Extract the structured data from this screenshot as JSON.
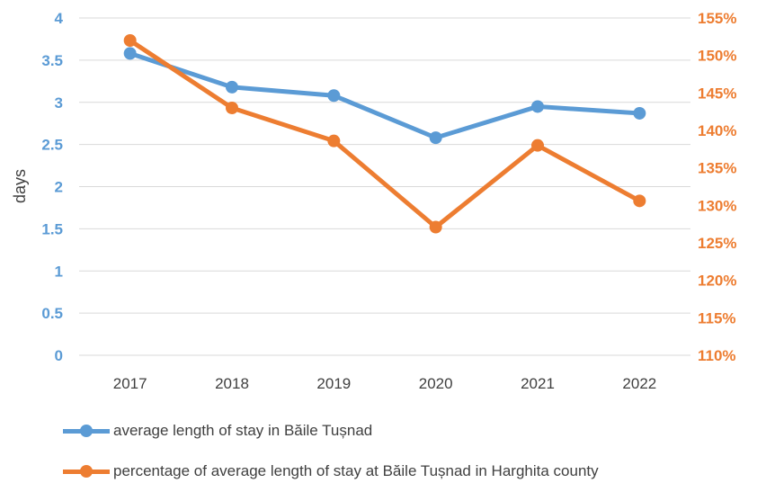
{
  "chart_data": {
    "type": "line",
    "categories": [
      "2017",
      "2018",
      "2019",
      "2020",
      "2021",
      "2022"
    ],
    "ylabel": "days",
    "ylim": [
      0,
      4
    ],
    "y_ticks": [
      "0",
      "0.5",
      "1",
      "1.5",
      "2",
      "2.5",
      "3",
      "3.5",
      "4"
    ],
    "y2lim": [
      110,
      155
    ],
    "y2_ticks": [
      "110%",
      "115%",
      "120%",
      "125%",
      "130%",
      "135%",
      "140%",
      "145%",
      "150%",
      "155%"
    ],
    "grid": true,
    "legend_position": "bottom",
    "series": [
      {
        "name": "average length of stay in Băile Tușnad",
        "axis": "left",
        "color": "#5B9BD5",
        "values": [
          3.58,
          3.18,
          3.08,
          2.58,
          2.95,
          2.87
        ]
      },
      {
        "name": "percentage of average length of stay at Băile Tușnad in Harghita county",
        "axis": "right",
        "color": "#ED7D31",
        "values": [
          152,
          143,
          138.6,
          127.1,
          138,
          130.6
        ]
      }
    ]
  },
  "colors": {
    "left_axis": "#5B9BD5",
    "right_axis": "#ED7D31",
    "grid": "#D9D9D9"
  }
}
